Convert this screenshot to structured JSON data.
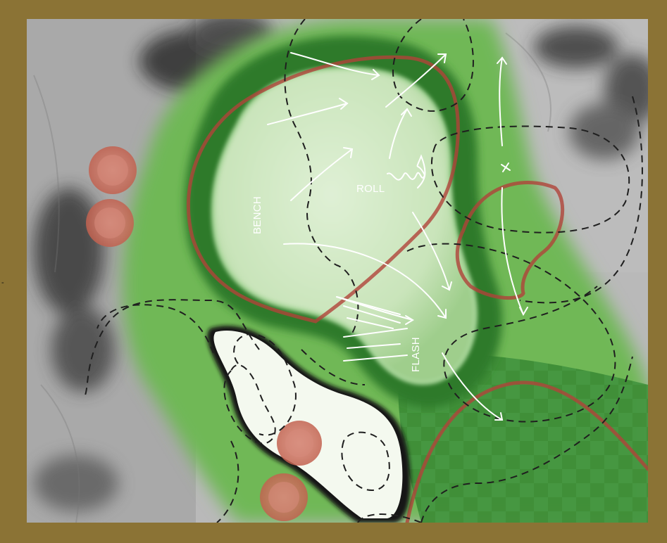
{
  "map": {
    "labels": {
      "bench": "BENCH",
      "roll": "ROLL",
      "flash": "FLASH"
    },
    "edge_mark": "-"
  },
  "colors": {
    "frame": "#8b7335",
    "green_surface": "#d4ebc7",
    "collar": "#2f7a2a",
    "fairway": "#5fae48",
    "bunker": "#f4f9ef",
    "tree_canopy": "#cf7a6b",
    "redline": "#b0433a",
    "contour": "#1f1f1f",
    "arrow": "#ffffff",
    "terrain": "#bdbdbd"
  },
  "icons": {
    "trees": "tree-canopy-icon",
    "arrows": "slope-arrow-icon",
    "target": "target-mark-icon"
  }
}
